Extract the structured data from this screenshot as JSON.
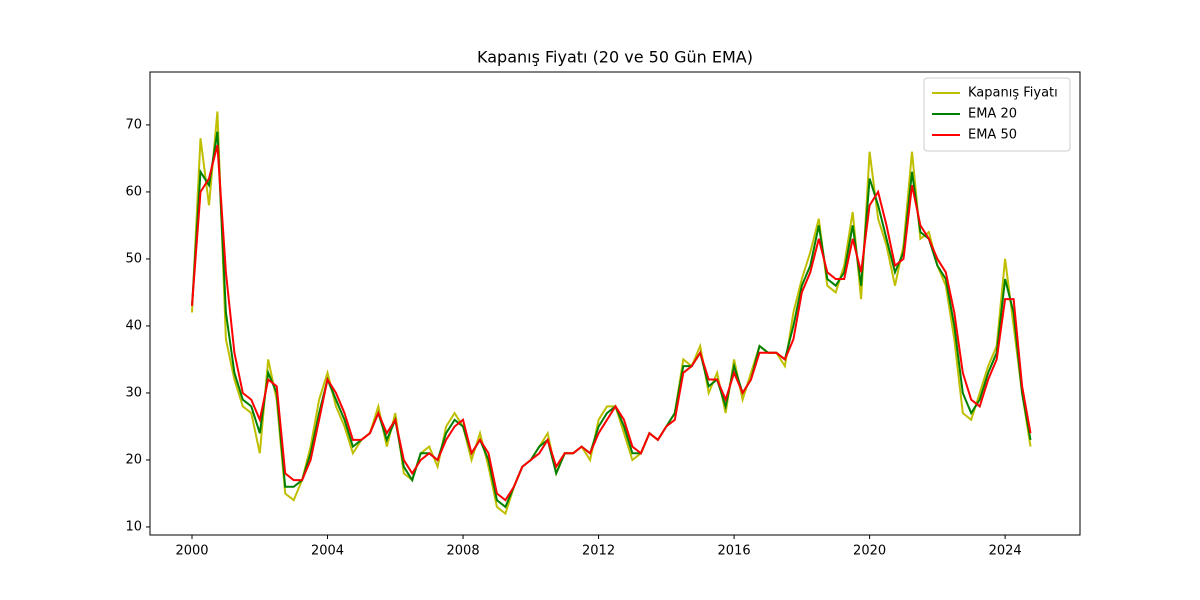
{
  "chart_data": {
    "type": "line",
    "title": "Kapanış Fiyatı (20 ve 50 Gün EMA)",
    "x": [
      2000,
      2000.25,
      2000.5,
      2000.75,
      2001,
      2001.25,
      2001.5,
      2001.75,
      2002,
      2002.25,
      2002.5,
      2002.75,
      2003,
      2003.25,
      2003.5,
      2003.75,
      2004,
      2004.25,
      2004.5,
      2004.75,
      2005,
      2005.25,
      2005.5,
      2005.75,
      2006,
      2006.25,
      2006.5,
      2006.75,
      2007,
      2007.25,
      2007.5,
      2007.75,
      2008,
      2008.25,
      2008.5,
      2008.75,
      2009,
      2009.25,
      2009.5,
      2009.75,
      2010,
      2010.25,
      2010.5,
      2010.75,
      2011,
      2011.25,
      2011.5,
      2011.75,
      2012,
      2012.25,
      2012.5,
      2012.75,
      2013,
      2013.25,
      2013.5,
      2013.75,
      2014,
      2014.25,
      2014.5,
      2014.75,
      2015,
      2015.25,
      2015.5,
      2015.75,
      2016,
      2016.25,
      2016.5,
      2016.75,
      2017,
      2017.25,
      2017.5,
      2017.75,
      2018,
      2018.25,
      2018.5,
      2018.75,
      2019,
      2019.25,
      2019.5,
      2019.75,
      2020,
      2020.25,
      2020.5,
      2020.75,
      2021,
      2021.25,
      2021.5,
      2021.75,
      2022,
      2022.25,
      2022.5,
      2022.75,
      2023,
      2023.25,
      2023.5,
      2023.75,
      2024,
      2024.25,
      2024.5,
      2024.75
    ],
    "series": [
      {
        "name": "Kapanış Fiyatı",
        "color": "#bfbf00",
        "values": [
          42,
          68,
          58,
          72,
          38,
          32,
          28,
          27,
          21,
          35,
          29,
          15,
          14,
          17,
          22,
          29,
          33,
          28,
          25,
          21,
          23,
          24,
          28,
          22,
          27,
          18,
          17,
          21,
          22,
          19,
          25,
          27,
          25,
          20,
          24,
          19,
          13,
          12,
          16,
          19,
          20,
          22,
          24,
          18,
          21,
          21,
          22,
          20,
          26,
          28,
          28,
          24,
          20,
          21,
          24,
          23,
          25,
          27,
          35,
          34,
          37,
          30,
          33,
          27,
          35,
          29,
          33,
          37,
          36,
          36,
          34,
          42,
          47,
          51,
          56,
          46,
          45,
          49,
          57,
          44,
          66,
          56,
          52,
          46,
          52,
          66,
          53,
          54,
          49,
          46,
          38,
          27,
          26,
          30,
          34,
          37,
          50,
          40,
          30,
          22
        ]
      },
      {
        "name": "EMA 20",
        "color": "#008000",
        "values": [
          43,
          63,
          61,
          69,
          42,
          33,
          29,
          28,
          24,
          33,
          30,
          16,
          16,
          17,
          21,
          27,
          32,
          29,
          26,
          22,
          23,
          24,
          27,
          23,
          26,
          19,
          17,
          21,
          21,
          20,
          24,
          26,
          25,
          21,
          23,
          20,
          14,
          13,
          16,
          19,
          20,
          22,
          23,
          18,
          21,
          21,
          22,
          21,
          25,
          27,
          28,
          25,
          21,
          21,
          24,
          23,
          25,
          27,
          34,
          34,
          36,
          31,
          32,
          28,
          34,
          30,
          32,
          37,
          36,
          36,
          35,
          40,
          46,
          49,
          55,
          47,
          46,
          48,
          55,
          46,
          62,
          58,
          53,
          48,
          51,
          63,
          54,
          53,
          49,
          47,
          40,
          30,
          27,
          29,
          33,
          36,
          47,
          42,
          30,
          23
        ]
      },
      {
        "name": "EMA 50",
        "color": "#ff0000",
        "values": [
          43,
          60,
          62,
          67,
          48,
          36,
          30,
          29,
          26,
          32,
          31,
          18,
          17,
          17,
          20,
          26,
          32,
          30,
          27,
          23,
          23,
          24,
          27,
          24,
          26,
          20,
          18,
          20,
          21,
          20,
          23,
          25,
          26,
          21,
          23,
          21,
          15,
          14,
          16,
          19,
          20,
          21,
          23,
          19,
          21,
          21,
          22,
          21,
          24,
          26,
          28,
          26,
          22,
          21,
          24,
          23,
          25,
          26,
          33,
          34,
          36,
          32,
          32,
          29,
          33,
          30,
          32,
          36,
          36,
          36,
          35,
          38,
          45,
          48,
          53,
          48,
          47,
          47,
          53,
          48,
          58,
          60,
          55,
          49,
          50,
          61,
          55,
          53,
          50,
          48,
          42,
          33,
          29,
          28,
          32,
          35,
          44,
          44,
          31,
          24
        ]
      }
    ],
    "xlim": [
      1998.76,
      2026.21
    ],
    "xticks": [
      2000,
      2004,
      2008,
      2012,
      2016,
      2020,
      2024
    ],
    "ylim": [
      8.8,
      77.9
    ],
    "yticks": [
      10,
      20,
      30,
      40,
      50,
      60,
      70
    ],
    "legend": "upper right"
  }
}
